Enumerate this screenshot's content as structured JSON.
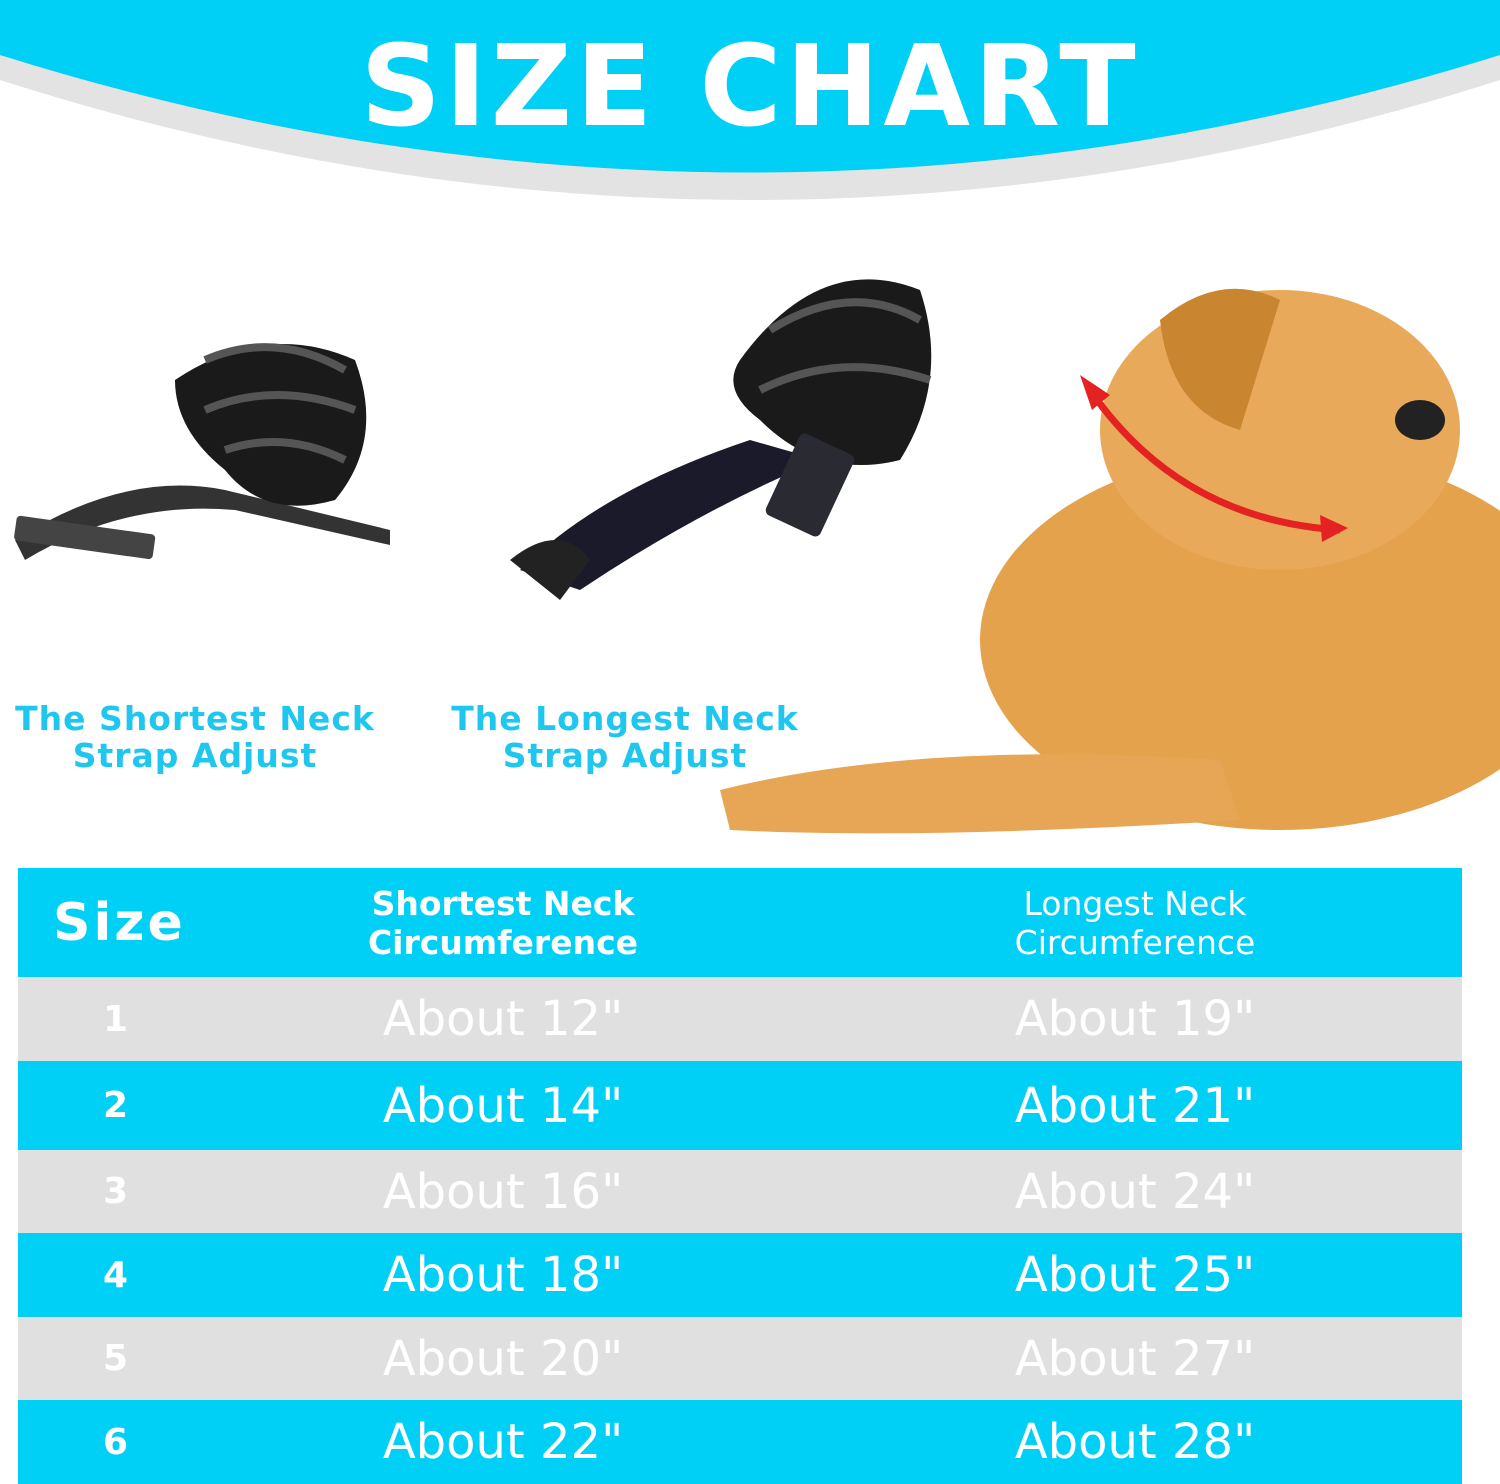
{
  "header": {
    "title": "SIZE CHART"
  },
  "colors": {
    "accent": "#00cff6",
    "row_alt": "#e0e0e0",
    "caption": "#1fc6ee"
  },
  "images": {
    "shortest": "muzzle-shortest-strap",
    "longest": "muzzle-longest-strap",
    "dog": "golden-retriever-neck-measure"
  },
  "captions": [
    {
      "line1": "The Shortest Neck",
      "line2": "Strap Adjust"
    },
    {
      "line1": "The Longest Neck",
      "line2": "Strap Adjust"
    }
  ],
  "table": {
    "headers": {
      "size": "Size",
      "short1": "Shortest Neck",
      "short2": "Circumference",
      "long1": "Longest Neck",
      "long2": "Circumference"
    },
    "rows": [
      {
        "size": "1",
        "shortest": "About 12\"",
        "longest": "About 19\""
      },
      {
        "size": "2",
        "shortest": "About 14\"",
        "longest": "About 21\""
      },
      {
        "size": "3",
        "shortest": "About 16\"",
        "longest": "About 24\""
      },
      {
        "size": "4",
        "shortest": "About 18\"",
        "longest": "About 25\""
      },
      {
        "size": "5",
        "shortest": "About 20\"",
        "longest": "About 27\""
      },
      {
        "size": "6",
        "shortest": "About 22\"",
        "longest": "About 28\""
      }
    ]
  }
}
